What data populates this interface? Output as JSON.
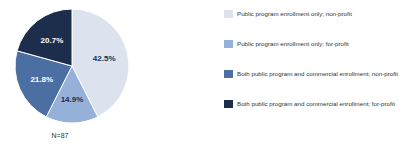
{
  "chart_data": {
    "type": "pie",
    "categories": [
      "Public program enrollment only; non-profit",
      "Public program enrollment only; for-profit",
      "Both public program and commercial enrollment; non-profit",
      "Both public program and commercial enrollment; for-profit"
    ],
    "values": [
      42.5,
      14.9,
      21.8,
      20.7
    ],
    "value_labels": [
      "42.5%",
      "14.9%",
      "21.8%",
      "20.7%"
    ],
    "colors": [
      "#dce3ef",
      "#96b1d9",
      "#4c6fa3",
      "#1d2d4c"
    ],
    "data_labels": true,
    "legend": "right",
    "annotations": [
      "N=87"
    ]
  }
}
